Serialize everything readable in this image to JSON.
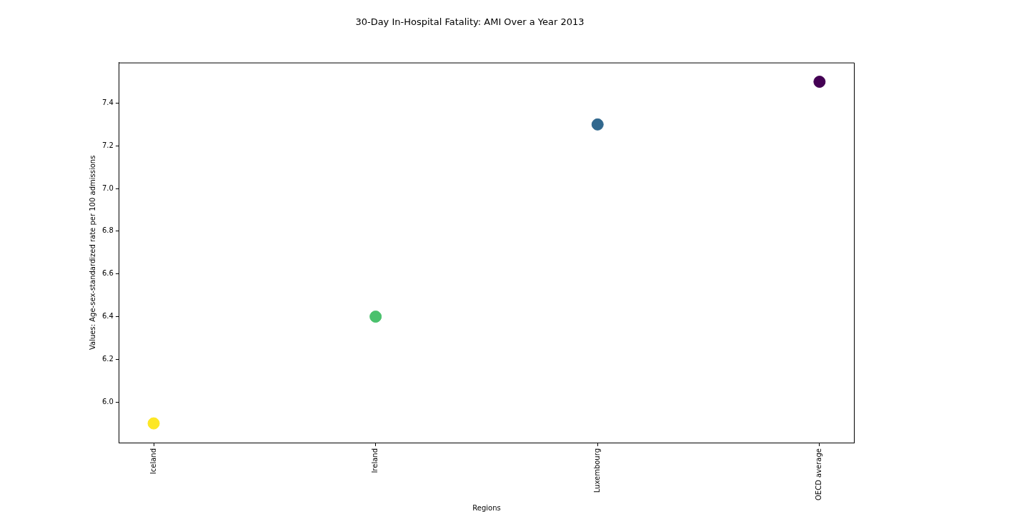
{
  "chart_data": {
    "type": "scatter",
    "title": "30-Day In-Hospital Fatality: AMI Over a Year 2013",
    "xlabel": "Regions",
    "ylabel": "Values: Age-sex-standardized rate per 100 admissions",
    "categories": [
      "Iceland",
      "Ireland",
      "Luxembourg",
      "OECD average"
    ],
    "values": [
      5.9,
      6.4,
      7.3,
      7.5
    ],
    "colors": [
      "#fde725",
      "#4ac16d",
      "#31688e",
      "#440154"
    ],
    "ylim": [
      5.81,
      7.59
    ],
    "yticks": [
      {
        "value": 6.0,
        "label": "6.0"
      },
      {
        "value": 6.2,
        "label": "6.2"
      },
      {
        "value": 6.4,
        "label": "6.4"
      },
      {
        "value": 6.6,
        "label": "6.6"
      },
      {
        "value": 6.8,
        "label": "6.8"
      },
      {
        "value": 7.0,
        "label": "7.0"
      },
      {
        "value": 7.2,
        "label": "7.2"
      },
      {
        "value": 7.4,
        "label": "7.4"
      }
    ],
    "grid": false,
    "legend": false,
    "marker": "circle"
  }
}
